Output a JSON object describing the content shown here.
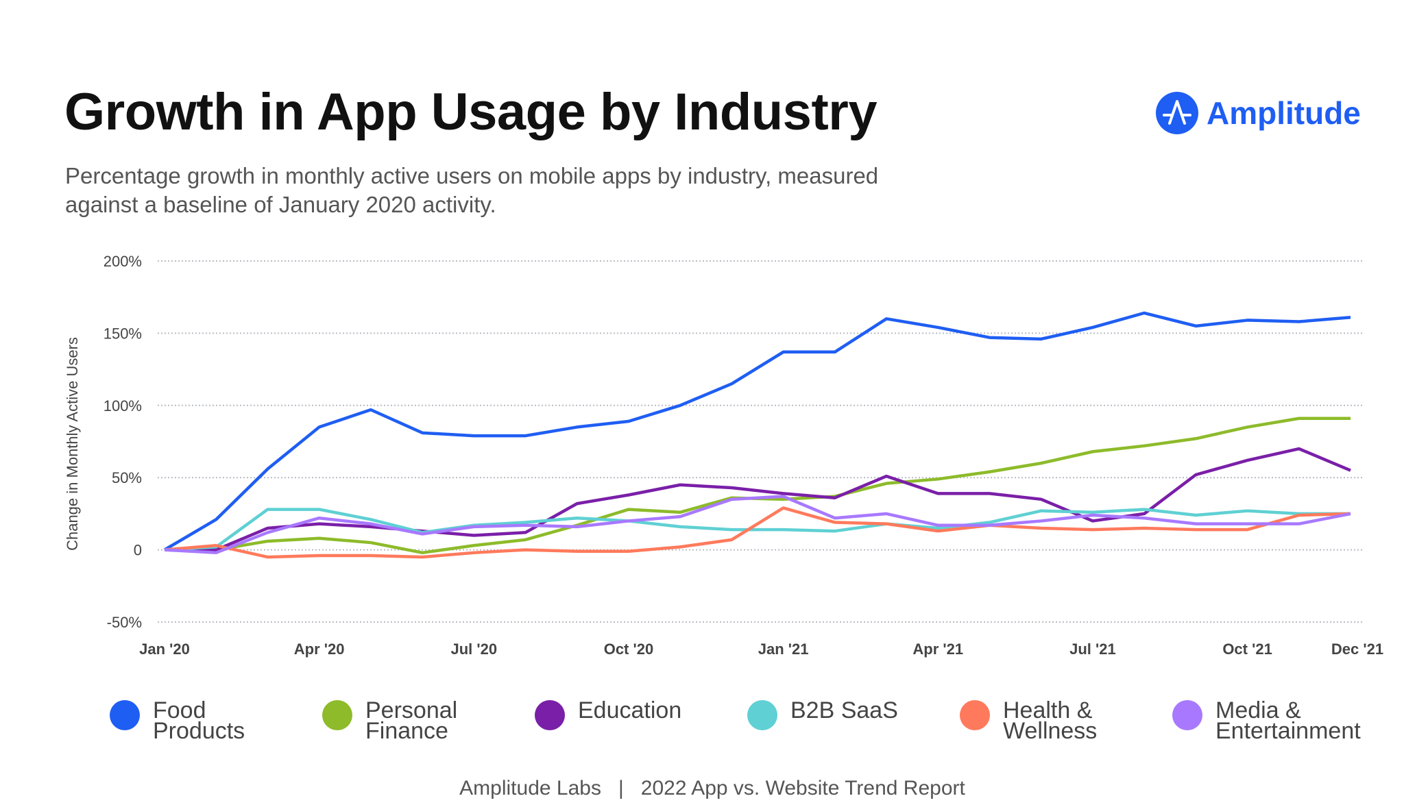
{
  "header": {
    "title": "Growth in App Usage by Industry",
    "subtitle": "Percentage growth in monthly active users on mobile apps by industry, measured against a baseline of January 2020 activity.",
    "logo_text": "Amplitude",
    "brand_color": "#1f5ef3"
  },
  "footer": {
    "source": "Amplitude Labs",
    "separator": "|",
    "report": "2022 App vs. Website Trend Report"
  },
  "chart_data": {
    "type": "line",
    "title": "Growth in App Usage by Industry",
    "ylabel": "Change in Monthly Active Users",
    "xlabel": "",
    "ylim": [
      -50,
      200
    ],
    "yticks": [
      {
        "v": 200,
        "label": "200%"
      },
      {
        "v": 150,
        "label": "150%"
      },
      {
        "v": 100,
        "label": "100%"
      },
      {
        "v": 50,
        "label": "50%"
      },
      {
        "v": 0,
        "label": "0"
      },
      {
        "v": -50,
        "label": "-50%"
      }
    ],
    "xticks": [
      {
        "i": 0,
        "label": "Jan '20"
      },
      {
        "i": 3,
        "label": "Apr '20"
      },
      {
        "i": 6,
        "label": "Jul '20"
      },
      {
        "i": 9,
        "label": "Oct '20"
      },
      {
        "i": 12,
        "label": "Jan '21"
      },
      {
        "i": 15,
        "label": "Apr '21"
      },
      {
        "i": 18,
        "label": "Jul '21"
      },
      {
        "i": 21,
        "label": "Oct '21"
      },
      {
        "i": 23,
        "label": "Dec '21"
      }
    ],
    "x": [
      "2020-01",
      "2020-02",
      "2020-03",
      "2020-04",
      "2020-05",
      "2020-06",
      "2020-07",
      "2020-08",
      "2020-09",
      "2020-10",
      "2020-11",
      "2020-12",
      "2021-01",
      "2021-02",
      "2021-03",
      "2021-04",
      "2021-05",
      "2021-06",
      "2021-07",
      "2021-08",
      "2021-09",
      "2021-10",
      "2021-11",
      "2021-12"
    ],
    "grid": true,
    "legend": "bottom",
    "series": [
      {
        "name": "Food\nProducts",
        "color": "#1f5ef3",
        "values": [
          0,
          21,
          56,
          85,
          97,
          81,
          79,
          79,
          85,
          89,
          100,
          115,
          137,
          137,
          160,
          154,
          147,
          146,
          154,
          164,
          155,
          159,
          158,
          161
        ]
      },
      {
        "name": "Personal\nFinance",
        "color": "#8dbb2a",
        "values": [
          0,
          0,
          6,
          8,
          5,
          -2,
          3,
          7,
          17,
          28,
          26,
          36,
          35,
          37,
          46,
          49,
          54,
          60,
          68,
          72,
          77,
          85,
          91,
          91
        ]
      },
      {
        "name": "Education",
        "color": "#7a1fa8",
        "values": [
          0,
          0,
          15,
          18,
          16,
          13,
          10,
          12,
          32,
          38,
          45,
          43,
          39,
          36,
          51,
          39,
          39,
          35,
          20,
          25,
          52,
          62,
          70,
          55
        ]
      },
      {
        "name": "B2B SaaS",
        "color": "#5fd0d3",
        "values": [
          0,
          2,
          28,
          28,
          21,
          12,
          17,
          19,
          22,
          20,
          16,
          14,
          14,
          13,
          18,
          15,
          19,
          27,
          26,
          28,
          24,
          27,
          25,
          25
        ]
      },
      {
        "name": "Health &\nWellness",
        "color": "#ff7a5c",
        "values": [
          0,
          3,
          -5,
          -4,
          -4,
          -5,
          -2,
          0,
          -1,
          -1,
          2,
          7,
          29,
          19,
          18,
          13,
          17,
          15,
          14,
          15,
          14,
          14,
          24,
          25
        ]
      },
      {
        "name": "Media &\nEntertainment",
        "color": "#a879ff",
        "values": [
          0,
          -2,
          12,
          22,
          18,
          11,
          16,
          17,
          16,
          20,
          23,
          35,
          37,
          22,
          25,
          17,
          17,
          20,
          24,
          22,
          18,
          18,
          18,
          25
        ]
      }
    ]
  }
}
